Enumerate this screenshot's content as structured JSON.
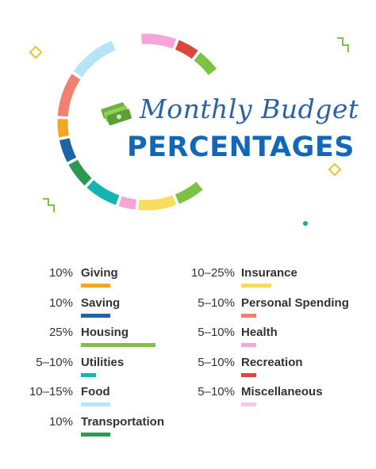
{
  "title": {
    "script": "Monthly Budget",
    "main": "PERCENTAGES"
  },
  "colors": {
    "title_script": "#2b62a6",
    "title_main": "#1168b8",
    "money_icon": "#6db33f"
  },
  "icons": {
    "money": "money-stack-icon",
    "diamond": "diamond-outline-icon",
    "zigzag": "zigzag-icon",
    "dot": "dot-icon"
  },
  "categories_left": [
    {
      "percent": "10%",
      "name": "Giving",
      "color": "#f5a623"
    },
    {
      "percent": "10%",
      "name": "Saving",
      "color": "#1f63a8"
    },
    {
      "percent": "25%",
      "name": "Housing",
      "color": "#7dc242"
    },
    {
      "percent": "5–10%",
      "name": "Utilities",
      "color": "#16b3b0"
    },
    {
      "percent": "10–15%",
      "name": "Food",
      "color": "#b7e3f7"
    },
    {
      "percent": "10%",
      "name": "Transportation",
      "color": "#2b9a4f"
    }
  ],
  "categories_right": [
    {
      "percent": "10–25%",
      "name": "Insurance",
      "color": "#f9dc5c"
    },
    {
      "percent": "5–10%",
      "name": "Personal Spending",
      "color": "#f08070"
    },
    {
      "percent": "5–10%",
      "name": "Health",
      "color": "#f4a6d8"
    },
    {
      "percent": "5–10%",
      "name": "Recreation",
      "color": "#d9473d"
    },
    {
      "percent": "5–10%",
      "name": "Miscellaneous",
      "color": "#f8c6e6"
    }
  ],
  "ring_segments": [
    {
      "color": "#f4a6d8",
      "start": -3,
      "end": 20
    },
    {
      "color": "#d9473d",
      "start": 22,
      "end": 36
    },
    {
      "color": "#7dc242",
      "start": 38,
      "end": 53
    },
    {
      "color": "#7dc242",
      "start": 140,
      "end": 158
    },
    {
      "color": "#f9dc5c",
      "start": 160,
      "end": 185
    },
    {
      "color": "#f4a6d8",
      "start": 187,
      "end": 198
    },
    {
      "color": "#16b3b0",
      "start": 200,
      "end": 222
    },
    {
      "color": "#2b9a4f",
      "start": 224,
      "end": 241
    },
    {
      "color": "#1f63a8",
      "start": 243,
      "end": 258
    },
    {
      "color": "#f5a623",
      "start": 260,
      "end": 272
    },
    {
      "color": "#f08070",
      "start": 274,
      "end": 303
    },
    {
      "color": "#b7e3f7",
      "start": 305,
      "end": 337
    }
  ]
}
